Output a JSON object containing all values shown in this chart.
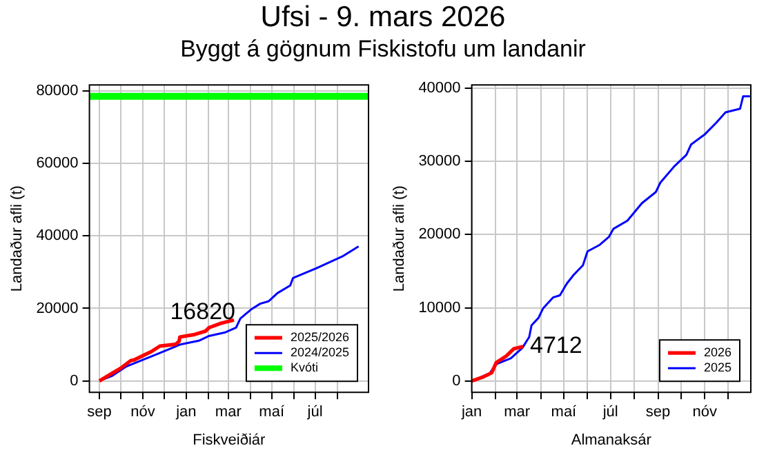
{
  "chart_data": [
    {
      "type": "line",
      "title": "Ufsi -  9. mars 2026",
      "subtitle": "Byggt á gögnum Fiskistofu um landanir",
      "xlabel": "Fiskveiðiár",
      "ylabel": "Landaður afli (t)",
      "series": [
        {
          "name": "2025/2026",
          "color": "#ff0000",
          "x": [
            "2024-09-01",
            "2024-09-13",
            "2024-10-01",
            "2024-10-15",
            "2024-10-20",
            "2024-11-13",
            "2024-11-25",
            "2024-12-17",
            "2024-12-22",
            "2024-12-23",
            "2025-01-13",
            "2025-01-28",
            "2025-02-02",
            "2025-02-19",
            "2025-03-09"
          ],
          "values": [
            0,
            1400,
            3500,
            5600,
            5800,
            8100,
            9600,
            10100,
            10900,
            12100,
            12800,
            13700,
            14700,
            15900,
            16820
          ]
        },
        {
          "name": "2024/2025",
          "color": "#0000ff",
          "x": [
            "2024-09-01",
            "2024-09-19",
            "2024-10-08",
            "2024-11-01",
            "2024-11-25",
            "2024-12-23",
            "2025-01-19",
            "2025-02-02",
            "2025-02-25",
            "2025-03-12",
            "2025-03-18",
            "2025-04-02",
            "2025-04-15",
            "2025-04-27",
            "2025-05-09",
            "2025-05-27",
            "2025-05-31",
            "2025-06-15",
            "2025-07-03",
            "2025-07-21",
            "2025-08-08",
            "2025-08-31"
          ],
          "values": [
            0,
            1400,
            3900,
            5800,
            7700,
            10000,
            11100,
            12400,
            13400,
            14700,
            17200,
            19700,
            21300,
            22000,
            24200,
            26300,
            28400,
            29600,
            31100,
            32700,
            34300,
            37100
          ]
        }
      ],
      "ref_lines": [
        {
          "axis": "y",
          "value": 78500,
          "label": "Kvóti",
          "color": "#00ff00"
        }
      ],
      "annotations": [
        {
          "text": "16820",
          "x": "2025-03-09",
          "y": 16820
        }
      ],
      "xlim": [
        "2024-08-18",
        "2025-09-14"
      ],
      "ylim": [
        -3140,
        81640
      ],
      "xticks": [
        {
          "value": "2024-09-01",
          "label": "sep"
        },
        {
          "value": "2024-10-01",
          "label": null
        },
        {
          "value": "2024-11-01",
          "label": "nóv"
        },
        {
          "value": "2024-12-01",
          "label": null
        },
        {
          "value": "2025-01-01",
          "label": "jan"
        },
        {
          "value": "2025-02-01",
          "label": null
        },
        {
          "value": "2025-03-01",
          "label": "mar"
        },
        {
          "value": "2025-04-01",
          "label": null
        },
        {
          "value": "2025-05-01",
          "label": "maí"
        },
        {
          "value": "2025-06-01",
          "label": null
        },
        {
          "value": "2025-07-01",
          "label": "júl"
        },
        {
          "value": "2025-08-01",
          "label": null
        }
      ],
      "yticks": [
        0,
        20000,
        40000,
        60000,
        80000
      ],
      "grid": true,
      "legend": "bottom right",
      "line_style": "solid",
      "marker": "none"
    },
    {
      "type": "line",
      "xlabel": "Almanaksár",
      "ylabel": "Landaður afli (t)",
      "series": [
        {
          "name": "2026",
          "color": "#ff0000",
          "x": [
            "--01-01",
            "--01-15",
            "--01-27",
            "--02-02",
            "--02-15",
            "--02-25",
            "--03-09"
          ],
          "values": [
            0,
            500,
            1100,
            2500,
            3400,
            4400,
            4712
          ]
        },
        {
          "name": "2025",
          "color": "#0000ff",
          "x": [
            "--01-01",
            "--01-24",
            "--02-02",
            "--02-21",
            "--03-08",
            "--03-17",
            "--03-20",
            "--03-29",
            "--04-04",
            "--04-17",
            "--04-26",
            "--05-05",
            "--05-14",
            "--05-26",
            "--06-01",
            "--06-17",
            "--06-29",
            "--07-05",
            "--07-23",
            "--08-11",
            "--08-29",
            "--09-04",
            "--09-22",
            "--10-08",
            "--10-14",
            "--11-01",
            "--11-16",
            "--11-28",
            "--12-17",
            "--12-21",
            "--12-30"
          ],
          "values": [
            0,
            1000,
            2300,
            3100,
            4500,
            6000,
            7600,
            8600,
            9900,
            11400,
            11700,
            13300,
            14500,
            15800,
            17700,
            18600,
            19700,
            20800,
            21900,
            24300,
            25800,
            27100,
            29300,
            30900,
            32300,
            33700,
            35300,
            36700,
            37200,
            38900,
            38900
          ]
        }
      ],
      "annotations": [
        {
          "text": "4712",
          "x": "--03-09",
          "y": 4712
        }
      ],
      "xlim": [
        "--01-01",
        "--12-31"
      ],
      "ylim": [
        -1556,
        40456
      ],
      "xticks": [
        {
          "value": "--01-01",
          "label": "jan"
        },
        {
          "value": "--02-01",
          "label": null
        },
        {
          "value": "--03-01",
          "label": "mar"
        },
        {
          "value": "--04-01",
          "label": null
        },
        {
          "value": "--05-01",
          "label": "maí"
        },
        {
          "value": "--06-01",
          "label": null
        },
        {
          "value": "--07-01",
          "label": "júl"
        },
        {
          "value": "--08-01",
          "label": null
        },
        {
          "value": "--09-01",
          "label": "sep"
        },
        {
          "value": "--10-01",
          "label": null
        },
        {
          "value": "--11-01",
          "label": "nóv"
        },
        {
          "value": "--12-01",
          "label": null
        }
      ],
      "yticks": [
        0,
        10000,
        20000,
        30000,
        40000
      ],
      "grid": true,
      "legend": "bottom right",
      "line_style": "solid",
      "marker": "none"
    }
  ]
}
